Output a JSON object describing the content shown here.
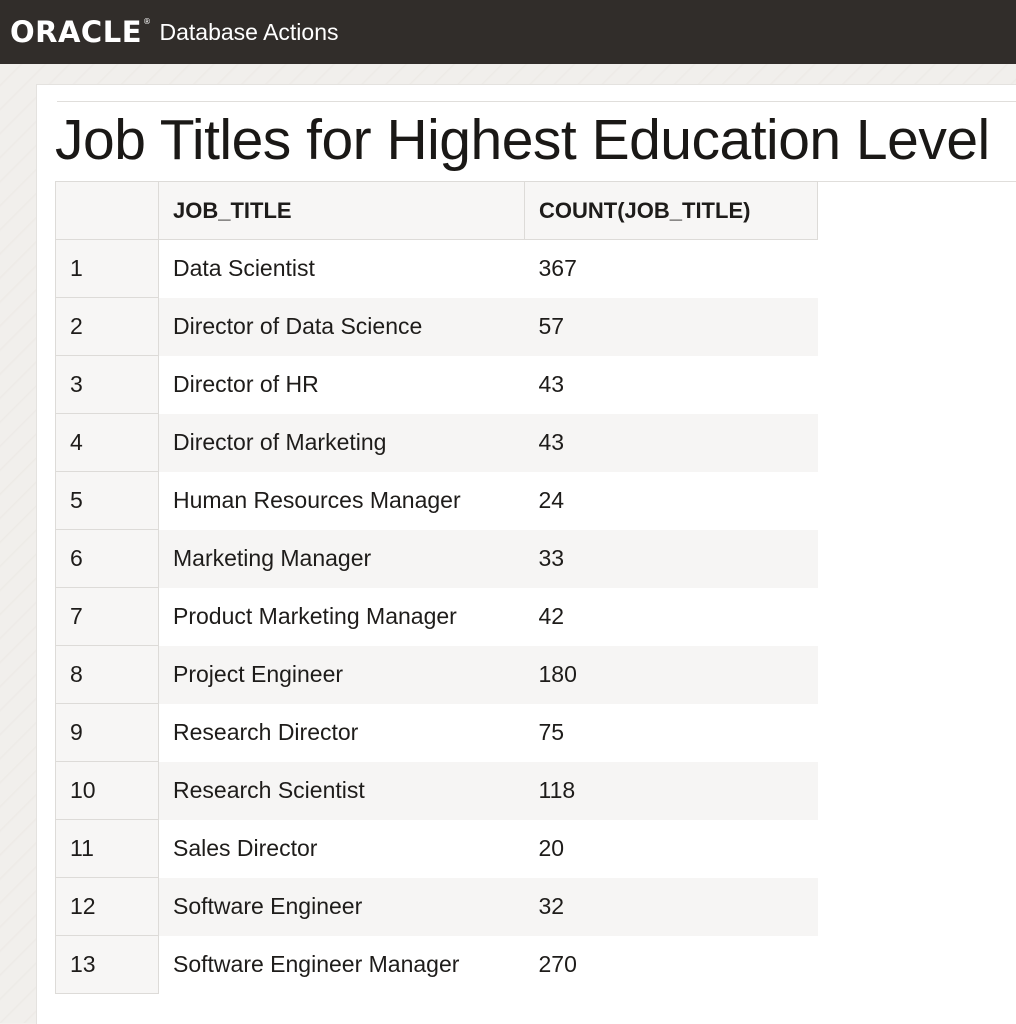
{
  "header": {
    "brand": "ORACLE",
    "brand_mark": "®",
    "app_name": "Database Actions"
  },
  "page": {
    "title": "Job Titles for Highest Education Level"
  },
  "grid": {
    "columns": [
      "JOB_TITLE",
      "COUNT(JOB_TITLE)"
    ],
    "rows": [
      {
        "n": "1",
        "job_title": "Data Scientist",
        "count": "367"
      },
      {
        "n": "2",
        "job_title": "Director of Data Science",
        "count": "57"
      },
      {
        "n": "3",
        "job_title": "Director of HR",
        "count": "43"
      },
      {
        "n": "4",
        "job_title": "Director of Marketing",
        "count": "43"
      },
      {
        "n": "5",
        "job_title": "Human Resources Manager",
        "count": "24"
      },
      {
        "n": "6",
        "job_title": "Marketing Manager",
        "count": "33"
      },
      {
        "n": "7",
        "job_title": "Product Marketing Manager",
        "count": "42"
      },
      {
        "n": "8",
        "job_title": "Project Engineer",
        "count": "180"
      },
      {
        "n": "9",
        "job_title": "Research Director",
        "count": "75"
      },
      {
        "n": "10",
        "job_title": "Research Scientist",
        "count": "118"
      },
      {
        "n": "11",
        "job_title": "Sales Director",
        "count": "20"
      },
      {
        "n": "12",
        "job_title": "Software Engineer",
        "count": "32"
      },
      {
        "n": "13",
        "job_title": "Software Engineer Manager",
        "count": "270"
      }
    ]
  }
}
